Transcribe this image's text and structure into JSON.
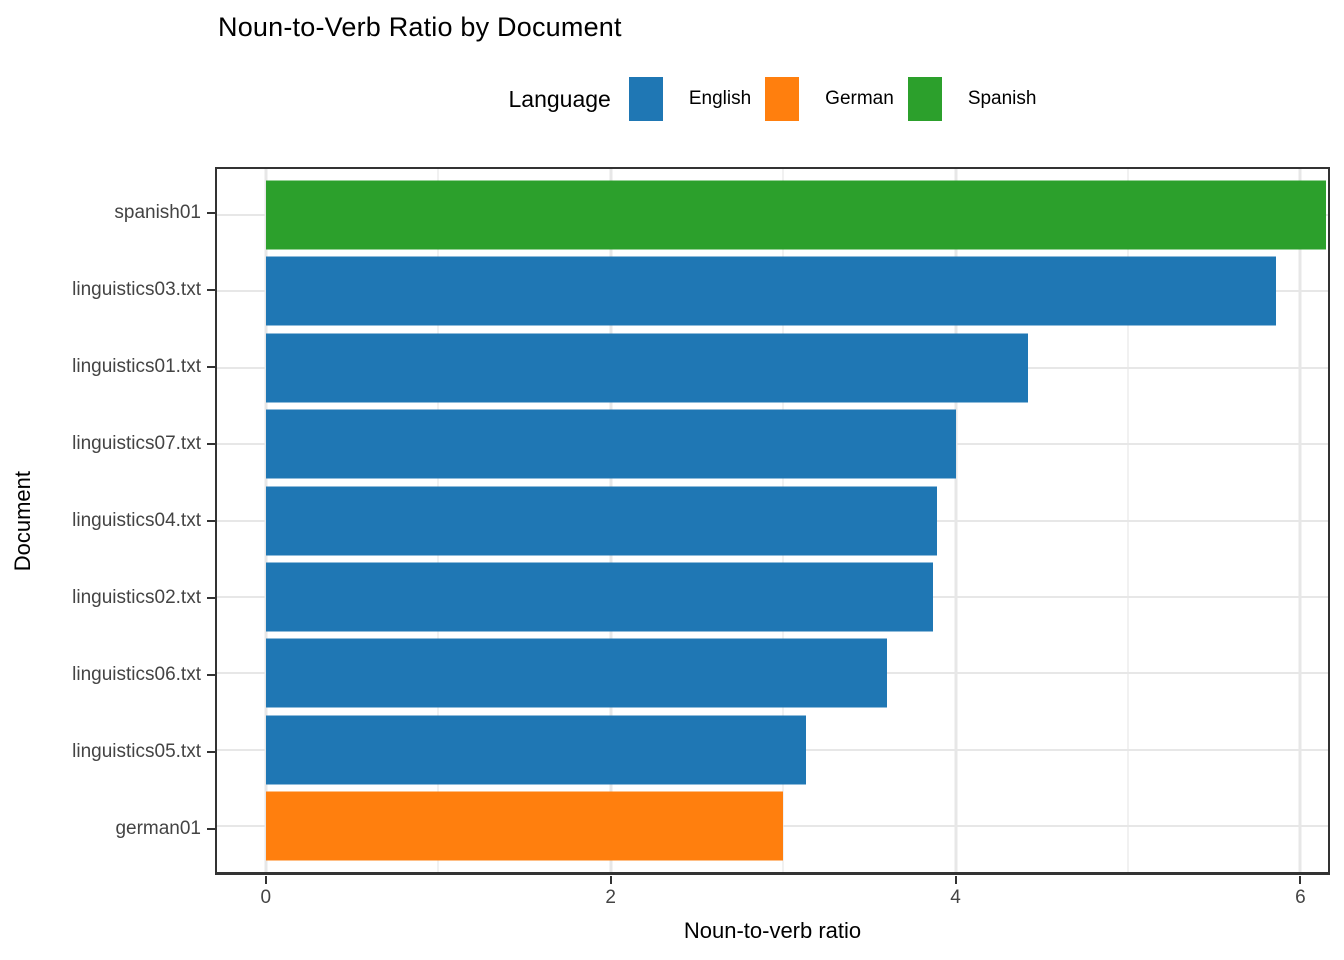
{
  "title": "Noun-to-Verb Ratio by Document",
  "legend": {
    "title": "Language",
    "items": [
      {
        "label": "English",
        "color": "#1f77b4"
      },
      {
        "label": "German",
        "color": "#ff7f0e"
      },
      {
        "label": "Spanish",
        "color": "#2ca02c"
      }
    ]
  },
  "axes": {
    "x_title": "Noun-to-verb ratio",
    "y_title": "Document"
  },
  "chart_data": {
    "type": "bar",
    "orientation": "horizontal",
    "title": "Noun-to-Verb Ratio by Document",
    "xlabel": "Noun-to-verb ratio",
    "ylabel": "Document",
    "categories": [
      "spanish01",
      "linguistics03.txt",
      "linguistics01.txt",
      "linguistics07.txt",
      "linguistics04.txt",
      "linguistics02.txt",
      "linguistics06.txt",
      "linguistics05.txt",
      "german01"
    ],
    "values": [
      6.15,
      5.86,
      4.42,
      4.0,
      3.89,
      3.87,
      3.6,
      3.13,
      3.0
    ],
    "languages": [
      "Spanish",
      "English",
      "English",
      "English",
      "English",
      "English",
      "English",
      "English",
      "German"
    ],
    "x_ticks": [
      0,
      2,
      4,
      6
    ],
    "x_minor_ticks": [
      1,
      3,
      5
    ],
    "xlim": [
      -0.283,
      6.16
    ],
    "grid": true,
    "legend_position": "top",
    "bar_origin": 0
  },
  "colors": {
    "English": "#1f77b4",
    "German": "#ff7f0e",
    "Spanish": "#2ca02c",
    "grid_major": "#e7e7e7",
    "grid_minor": "#f1f1f1",
    "axis_text": "#444444",
    "panel_border": "#333333",
    "background": "#ffffff"
  }
}
